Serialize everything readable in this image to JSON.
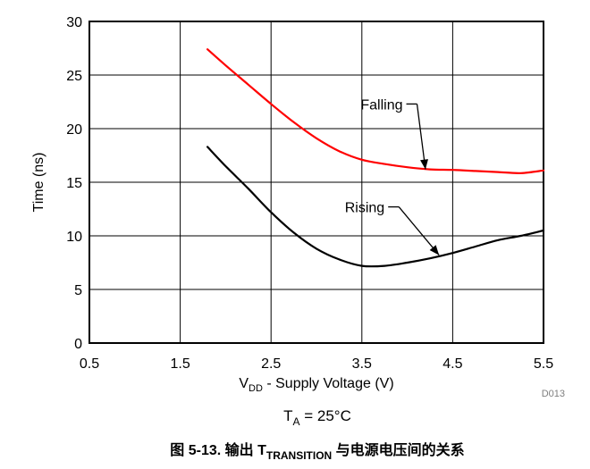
{
  "chart_data": {
    "type": "line",
    "xlabel": "V_DD - Supply Voltage (V)",
    "xlabel_parts": {
      "main": "V",
      "sub": "DD",
      "rest": " - Supply Voltage (V)"
    },
    "ylabel": "Time (ns)",
    "xlim": [
      0.5,
      5.5
    ],
    "ylim": [
      0,
      30
    ],
    "xticks": [
      0.5,
      1.5,
      2.5,
      3.5,
      4.5,
      5.5
    ],
    "xtick_labels": [
      "0.5",
      "1.5",
      "2.5",
      "3.5",
      "4.5",
      "5.5"
    ],
    "yticks": [
      0,
      5,
      10,
      15,
      20,
      25,
      30
    ],
    "ytick_labels": [
      "0",
      "5",
      "10",
      "15",
      "20",
      "25",
      "30"
    ],
    "grid": true,
    "series": [
      {
        "name": "Falling",
        "color": "#ff0000",
        "x": [
          1.8,
          2.0,
          2.25,
          2.5,
          2.75,
          3.0,
          3.25,
          3.5,
          3.75,
          4.0,
          4.25,
          4.5,
          4.75,
          5.0,
          5.25,
          5.5
        ],
        "y": [
          27.4,
          25.9,
          24.1,
          22.3,
          20.6,
          19.1,
          17.9,
          17.1,
          16.7,
          16.4,
          16.2,
          16.15,
          16.05,
          15.95,
          15.85,
          16.1
        ]
      },
      {
        "name": "Rising",
        "color": "#000000",
        "x": [
          1.8,
          2.0,
          2.25,
          2.5,
          2.75,
          3.0,
          3.25,
          3.5,
          3.75,
          4.0,
          4.25,
          4.5,
          4.75,
          5.0,
          5.25,
          5.5
        ],
        "y": [
          18.3,
          16.5,
          14.4,
          12.2,
          10.3,
          8.8,
          7.8,
          7.2,
          7.2,
          7.5,
          7.9,
          8.4,
          9.0,
          9.6,
          10.0,
          10.5
        ]
      }
    ],
    "annotations": [
      {
        "text": "Falling",
        "series": "Falling",
        "label_x": 3.95,
        "label_y": 22.3,
        "arrow_to_x": 4.2,
        "arrow_to_y": 16.2
      },
      {
        "text": "Rising",
        "series": "Rising",
        "label_x": 3.75,
        "label_y": 12.7,
        "arrow_to_x": 4.35,
        "arrow_to_y": 8.2
      }
    ]
  },
  "figure": {
    "code": "D013",
    "condition": {
      "main": "T",
      "sub": "A",
      "rest": " = 25°C"
    },
    "caption": {
      "prefix": "图 5-13. 输出 T",
      "sub": "TRANSITION",
      "suffix": " 与电源电压间的关系"
    }
  }
}
